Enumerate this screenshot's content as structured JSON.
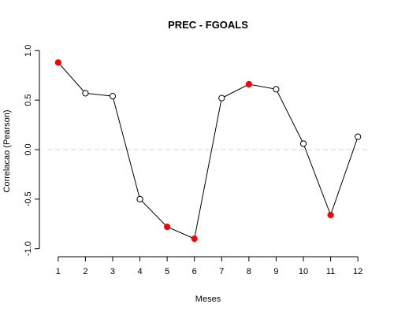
{
  "chart_data": {
    "type": "line",
    "title": "PREC - FGOALS",
    "xlabel": "Meses",
    "ylabel": "Correlacao (Pearson)",
    "x": [
      1,
      2,
      3,
      4,
      5,
      6,
      7,
      8,
      9,
      10,
      11,
      12
    ],
    "x_tick_labels": [
      "1",
      "2",
      "3",
      "4",
      "5",
      "6",
      "7",
      "8",
      "9",
      "10",
      "11",
      "12"
    ],
    "y_tick_labels": [
      "-1.0",
      "-0.5",
      "0.0",
      "0.5",
      "1.0"
    ],
    "y_ticks": [
      -1.0,
      -0.5,
      0.0,
      0.5,
      1.0
    ],
    "xlim": [
      0.6,
      12.4
    ],
    "ylim": [
      -1.05,
      1.05
    ],
    "reference_line_y": 0.0,
    "series": [
      {
        "values": [
          0.88,
          0.57,
          0.54,
          -0.5,
          -0.78,
          -0.9,
          0.52,
          0.66,
          0.61,
          0.06,
          -0.66,
          0.13
        ],
        "highlighted": [
          true,
          false,
          false,
          false,
          true,
          true,
          false,
          true,
          false,
          false,
          true,
          false
        ]
      }
    ],
    "colors": {
      "line": "#000000",
      "open_marker": "#000000",
      "highlight_marker": "#ff0000",
      "reference_line": "#d3d3d3"
    },
    "grid": false
  }
}
